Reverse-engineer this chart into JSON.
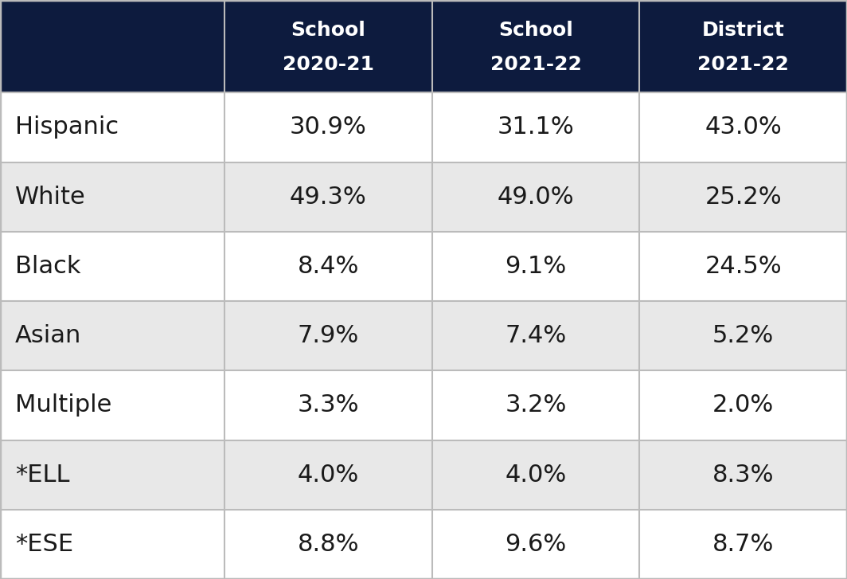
{
  "header_bg_color": "#0d1b3e",
  "header_text_color": "#ffffff",
  "col_headers": [
    [
      "School\n2020-21"
    ],
    [
      "School\n2021-22"
    ],
    [
      "District\n2021-22"
    ]
  ],
  "row_labels": [
    "Hispanic",
    "White",
    "Black",
    "Asian",
    "Multiple",
    "*ELL",
    "*ESE"
  ],
  "values": [
    [
      "30.9%",
      "31.1%",
      "43.0%"
    ],
    [
      "49.3%",
      "49.0%",
      "25.2%"
    ],
    [
      "8.4%",
      "9.1%",
      "24.5%"
    ],
    [
      "7.9%",
      "7.4%",
      "5.2%"
    ],
    [
      "3.3%",
      "3.2%",
      "2.0%"
    ],
    [
      "4.0%",
      "4.0%",
      "8.3%"
    ],
    [
      "8.8%",
      "9.6%",
      "8.7%"
    ]
  ],
  "row_bg_colors": [
    "#ffffff",
    "#e8e8e8",
    "#ffffff",
    "#e8e8e8",
    "#ffffff",
    "#e8e8e8",
    "#ffffff"
  ],
  "data_text_color": "#1a1a1a",
  "grid_color": "#bbbbbb",
  "fig_bg_color": "#c8c8c8",
  "header_fontsize": 18,
  "data_fontsize": 22,
  "label_fontsize": 22
}
